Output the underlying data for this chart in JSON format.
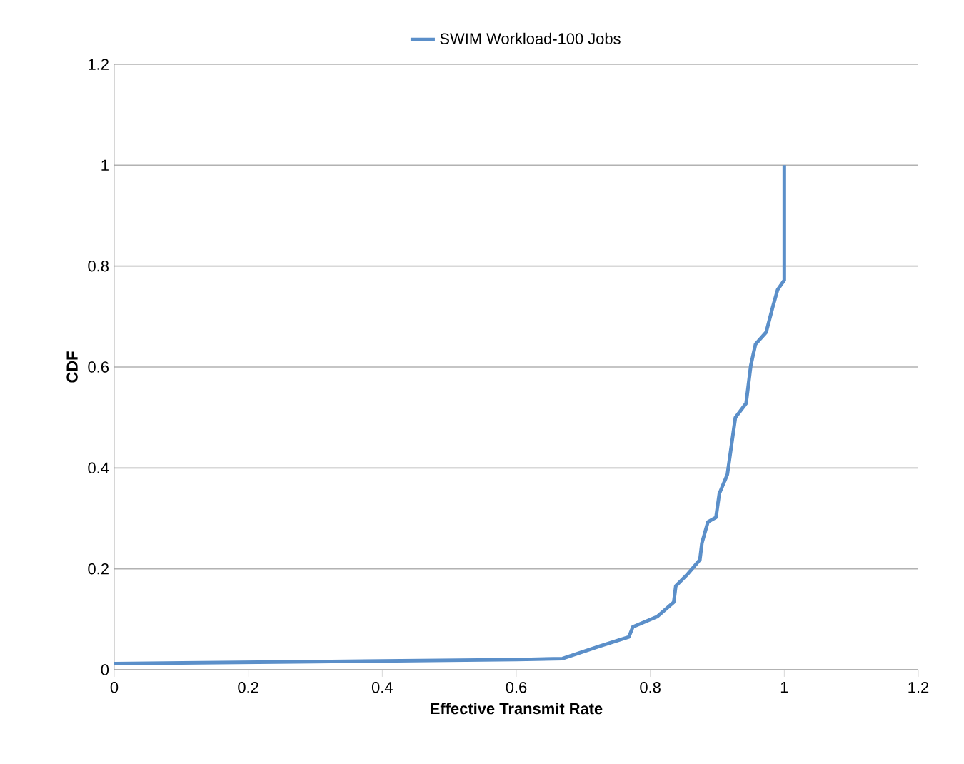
{
  "chart_data": {
    "type": "line",
    "xlabel": "Effective Transmit Rate",
    "ylabel": "CDF",
    "series": [
      {
        "name": "SWIM Workload-100 Jobs",
        "color": "#5b8fc9",
        "x": [
          0,
          0.3,
          0.6,
          0.669,
          0.725,
          0.768,
          0.774,
          0.81,
          0.835,
          0.838,
          0.856,
          0.874,
          0.877,
          0.886,
          0.898,
          0.903,
          0.915,
          0.927,
          0.943,
          0.95,
          0.957,
          0.973,
          0.983,
          0.99,
          1.0,
          1.0
        ],
        "values": [
          0.012,
          0.016,
          0.02,
          0.022,
          0.047,
          0.065,
          0.085,
          0.105,
          0.134,
          0.166,
          0.19,
          0.218,
          0.251,
          0.293,
          0.302,
          0.349,
          0.387,
          0.5,
          0.528,
          0.603,
          0.645,
          0.669,
          0.72,
          0.753,
          0.772,
          1.0
        ]
      }
    ],
    "xlim": [
      0,
      1.2
    ],
    "ylim": [
      0,
      1.2
    ],
    "xticks": [
      0,
      0.2,
      0.4,
      0.6,
      0.8,
      1,
      1.2
    ],
    "yticks": [
      0,
      0.2,
      0.4,
      0.6,
      0.8,
      1,
      1.2
    ],
    "grid": "y",
    "legend": "top",
    "marker": "none",
    "line_style": "solid"
  }
}
